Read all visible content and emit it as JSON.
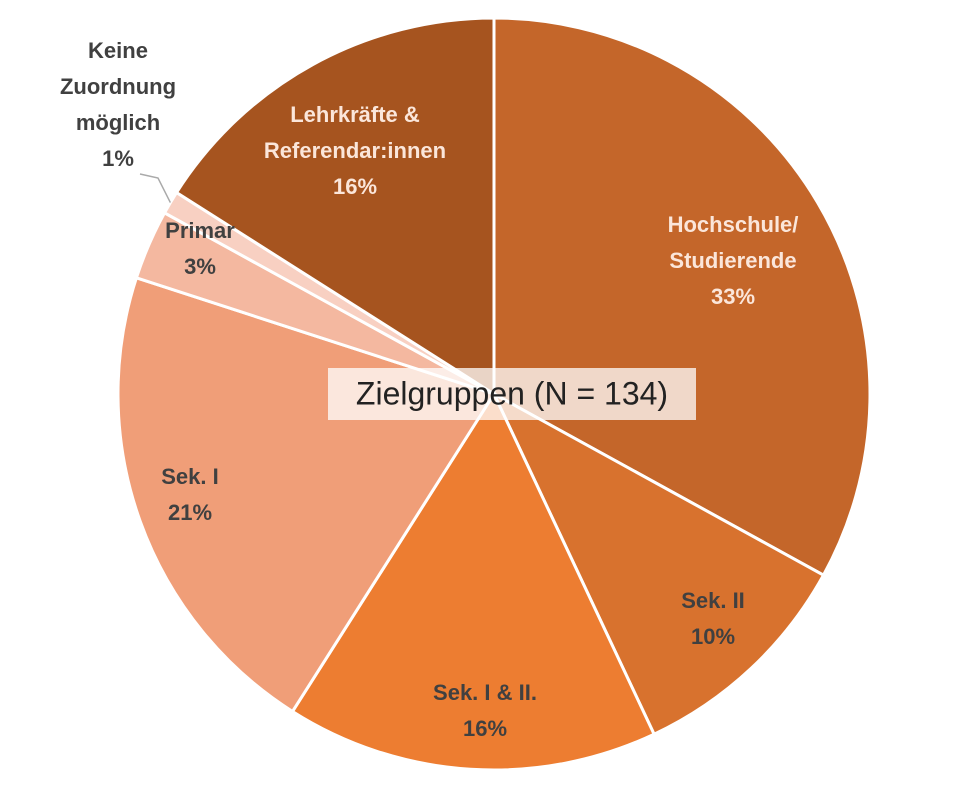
{
  "chart_data": {
    "type": "pie",
    "title": "Zielgruppen (N = 134)",
    "categories": [
      "Hochschule/\nStudierende",
      "Sek. II",
      "Sek. I & II.",
      "Sek. I",
      "Primar",
      "Keine\nZuordnung\nmöglich",
      "Lehrkräfte &\nReferendar:innen"
    ],
    "values": [
      33,
      10,
      16,
      21,
      3,
      1,
      16
    ],
    "value_labels": [
      "33%",
      "10%",
      "16%",
      "21%",
      "3%",
      "1%",
      "16%"
    ],
    "colors": [
      "#c4662a",
      "#d8722e",
      "#ed7d31",
      "#f09e78",
      "#f4b8a0",
      "#f8d0c2",
      "#a6541f"
    ]
  }
}
